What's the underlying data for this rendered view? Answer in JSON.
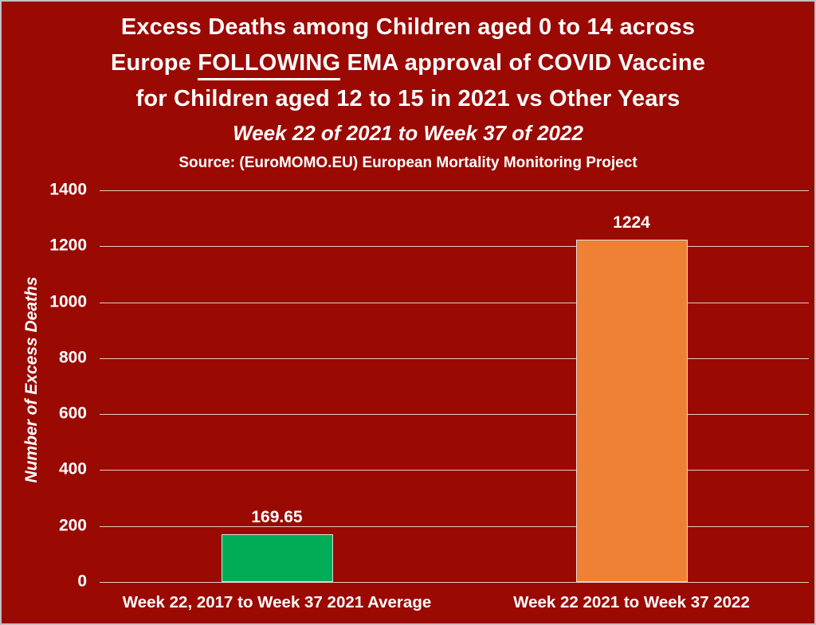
{
  "frame": {
    "background_color": "#9B0903",
    "border_color": "#BFBFBF",
    "text_color": "#FFFFFF"
  },
  "title": {
    "line1": "Excess Deaths among Children aged 0 to 14 across",
    "line2_pre": "Europe ",
    "line2_underlined": "FOLLOWING",
    "line2_post": " EMA approval of COVID Vaccine",
    "line3": "for Children aged 12 to 15 in 2021 vs Other Years",
    "subtitle": "Week 22 of 2021 to Week 37 of 2022",
    "source": "Source: (EuroMOMO.EU) European Mortality Monitoring Project"
  },
  "chart_data": {
    "type": "bar",
    "title": "Excess Deaths among Children aged 0 to 14 across Europe FOLLOWING EMA approval of COVID Vaccine for Children aged 12 to 15 in 2021 vs Other Years",
    "subtitle": "Week 22 of 2021 to Week 37 of 2022",
    "source": "Source: (EuroMOMO.EU) European Mortality Monitoring Project",
    "categories": [
      "Week 22, 2017 to Week 37 2021 Average",
      "Week 22 2021 to Week 37 2022"
    ],
    "values": [
      169.65,
      1224
    ],
    "value_labels": [
      "169.65",
      "1224"
    ],
    "bar_colors": [
      "#00AC55",
      "#EE8133"
    ],
    "bar_border_color": "#DCDCDC",
    "xlabel": "",
    "ylabel": "Number of Excess Deaths",
    "ylim": [
      0,
      1400
    ],
    "yticks": [
      0,
      200,
      400,
      600,
      800,
      1000,
      1200,
      1400
    ],
    "grid": "horizontal",
    "gridline_color": "rgba(255,255,255,0.78)",
    "legend_position": "none",
    "plot_background": "#9B0903"
  }
}
